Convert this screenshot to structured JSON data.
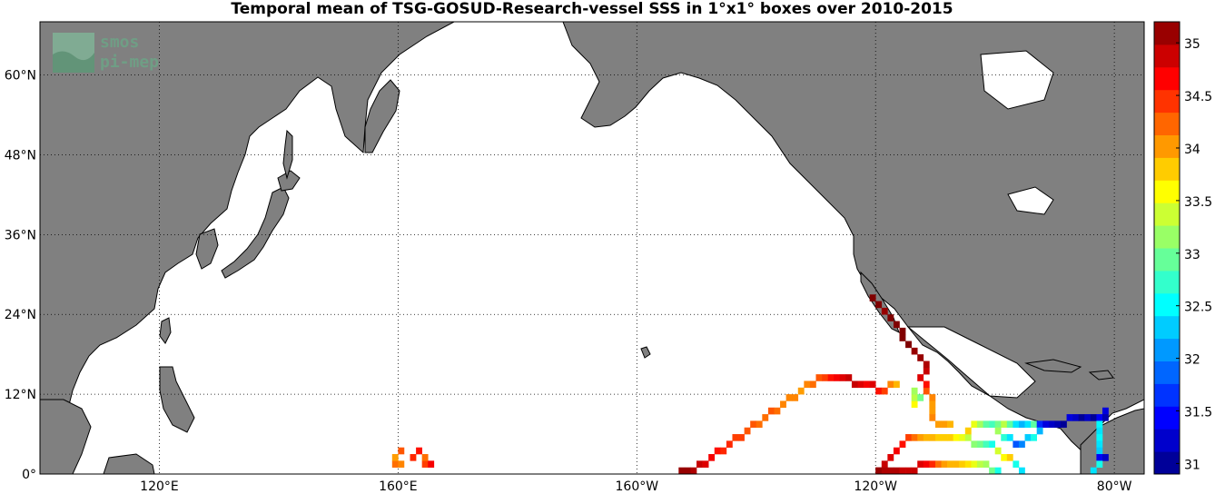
{
  "title": "Temporal mean of TSG-GOSUD-Research-vessel SSS in 1°x1° boxes over 2010-2015",
  "logo": {
    "line1": "smos",
    "line2": "pi-mep"
  },
  "map": {
    "projection": "equirectangular",
    "lon_range": [
      100,
      285
    ],
    "lat_range": [
      0,
      68
    ],
    "land_color": "#808080",
    "ocean_color": "#ffffff",
    "grid": "dotted",
    "lat_ticks": [
      {
        "value": 0,
        "label": "0°"
      },
      {
        "value": 12,
        "label": "12°N"
      },
      {
        "value": 24,
        "label": "24°N"
      },
      {
        "value": 36,
        "label": "36°N"
      },
      {
        "value": 48,
        "label": "48°N"
      },
      {
        "value": 60,
        "label": "60°N"
      }
    ],
    "lon_ticks": [
      {
        "value": 120,
        "label": "120°E"
      },
      {
        "value": 160,
        "label": "160°E"
      },
      {
        "value": 200,
        "label": "160°W"
      },
      {
        "value": 240,
        "label": "120°W"
      },
      {
        "value": 280,
        "label": "80°W"
      }
    ]
  },
  "colorbar": {
    "min": 30.9,
    "max": 35.2,
    "ticks": [
      {
        "value": 31,
        "label": "31"
      },
      {
        "value": 31.5,
        "label": "31.5"
      },
      {
        "value": 32,
        "label": "32"
      },
      {
        "value": 32.5,
        "label": "32.5"
      },
      {
        "value": 33,
        "label": "33"
      },
      {
        "value": 33.5,
        "label": "33.5"
      },
      {
        "value": 34,
        "label": "34"
      },
      {
        "value": 34.5,
        "label": "34.5"
      },
      {
        "value": 35,
        "label": "35"
      }
    ]
  },
  "chart_data": {
    "type": "heatmap",
    "title": "Temporal mean of TSG-GOSUD-Research-vessel SSS in 1°x1° boxes over 2010-2015",
    "units": "",
    "cells": [
      [
        159,
        1,
        34.2
      ],
      [
        159,
        2,
        34.0
      ],
      [
        160,
        1,
        34.1
      ],
      [
        160,
        3,
        34.3
      ],
      [
        162,
        2,
        34.5
      ],
      [
        163,
        3,
        34.6
      ],
      [
        164,
        1,
        34.4
      ],
      [
        164,
        2,
        34.2
      ],
      [
        165,
        1,
        34.7
      ],
      [
        207,
        0,
        35.1
      ],
      [
        208,
        0,
        35.1
      ],
      [
        209,
        0,
        35.0
      ],
      [
        210,
        1,
        34.9
      ],
      [
        211,
        1,
        34.8
      ],
      [
        212,
        2,
        34.7
      ],
      [
        213,
        3,
        34.6
      ],
      [
        214,
        3,
        34.5
      ],
      [
        215,
        4,
        34.5
      ],
      [
        216,
        5,
        34.4
      ],
      [
        217,
        5,
        34.4
      ],
      [
        218,
        6,
        34.3
      ],
      [
        219,
        7,
        34.3
      ],
      [
        220,
        7,
        34.2
      ],
      [
        221,
        8,
        34.2
      ],
      [
        222,
        9,
        34.3
      ],
      [
        223,
        9,
        34.2
      ],
      [
        224,
        10,
        34.1
      ],
      [
        225,
        11,
        34.1
      ],
      [
        226,
        11,
        34.1
      ],
      [
        227,
        12,
        34.0
      ],
      [
        228,
        13,
        34.1
      ],
      [
        229,
        13,
        34.2
      ],
      [
        230,
        14,
        34.3
      ],
      [
        231,
        14,
        34.4
      ],
      [
        232,
        14,
        34.6
      ],
      [
        233,
        14,
        34.7
      ],
      [
        234,
        14,
        34.8
      ],
      [
        235,
        14,
        34.9
      ],
      [
        236,
        13,
        34.9
      ],
      [
        237,
        13,
        34.8
      ],
      [
        238,
        13,
        34.7
      ],
      [
        239,
        13,
        34.8
      ],
      [
        240,
        12,
        34.6
      ],
      [
        241,
        12,
        34.4
      ],
      [
        242,
        13,
        34.1
      ],
      [
        243,
        13,
        33.9
      ],
      [
        246,
        10,
        33.6
      ],
      [
        246,
        11,
        33.3
      ],
      [
        247,
        11,
        33.0
      ],
      [
        246,
        12,
        33.2
      ],
      [
        248,
        12,
        34.3
      ],
      [
        248,
        13,
        34.6
      ],
      [
        247,
        14,
        34.8
      ],
      [
        248,
        15,
        34.9
      ],
      [
        248,
        16,
        35.0
      ],
      [
        247,
        17,
        35.1
      ],
      [
        246,
        18,
        35.1
      ],
      [
        245,
        19,
        35.2
      ],
      [
        244,
        20,
        35.2
      ],
      [
        244,
        21,
        35.2
      ],
      [
        243,
        22,
        35.2
      ],
      [
        242,
        23,
        35.2
      ],
      [
        241,
        24,
        35.1
      ],
      [
        240,
        25,
        35.2
      ],
      [
        239,
        26,
        35.2
      ],
      [
        249,
        11,
        34.1
      ],
      [
        249,
        10,
        34.0
      ],
      [
        249,
        9,
        34.0
      ],
      [
        249,
        8,
        34.1
      ],
      [
        250,
        7,
        34.0
      ],
      [
        251,
        7,
        34.0
      ],
      [
        252,
        7,
        33.9
      ],
      [
        240,
        0,
        35.1
      ],
      [
        241,
        1,
        34.9
      ],
      [
        242,
        2,
        34.8
      ],
      [
        243,
        3,
        34.7
      ],
      [
        244,
        4,
        34.6
      ],
      [
        245,
        5,
        34.4
      ],
      [
        246,
        5,
        34.2
      ],
      [
        247,
        5,
        34.0
      ],
      [
        248,
        5,
        33.9
      ],
      [
        249,
        5,
        33.9
      ],
      [
        250,
        5,
        33.8
      ],
      [
        251,
        5,
        33.8
      ],
      [
        252,
        5,
        33.8
      ],
      [
        253,
        5,
        33.6
      ],
      [
        254,
        5,
        33.5
      ],
      [
        255,
        5,
        33.3
      ],
      [
        256,
        4,
        33.1
      ],
      [
        257,
        4,
        33.0
      ],
      [
        258,
        4,
        32.8
      ],
      [
        259,
        4,
        32.6
      ],
      [
        260,
        3,
        33.4
      ],
      [
        261,
        2,
        33.6
      ],
      [
        262,
        2,
        33.8
      ],
      [
        263,
        1,
        32.6
      ],
      [
        264,
        0,
        32.4
      ],
      [
        255,
        6,
        33.8
      ],
      [
        256,
        7,
        33.5
      ],
      [
        257,
        7,
        33.2
      ],
      [
        258,
        7,
        32.9
      ],
      [
        259,
        7,
        32.8
      ],
      [
        260,
        7,
        33.0
      ],
      [
        261,
        7,
        33.3
      ],
      [
        262,
        7,
        32.9
      ],
      [
        263,
        7,
        32.4
      ],
      [
        264,
        7,
        32.2
      ],
      [
        265,
        7,
        32.4
      ],
      [
        266,
        7,
        32.9
      ],
      [
        267,
        7,
        31.6
      ],
      [
        268,
        7,
        31.3
      ],
      [
        269,
        7,
        31.2
      ],
      [
        270,
        7,
        31.1
      ],
      [
        271,
        7,
        31.0
      ],
      [
        272,
        8,
        31.3
      ],
      [
        273,
        8,
        31.2
      ],
      [
        274,
        8,
        31.0
      ],
      [
        275,
        8,
        31.2
      ],
      [
        276,
        8,
        31.0
      ],
      [
        277,
        8,
        31.4
      ],
      [
        278,
        9,
        31.3
      ],
      [
        278,
        8,
        31.1
      ],
      [
        260,
        6,
        33.2
      ],
      [
        261,
        5,
        32.7
      ],
      [
        262,
        5,
        32.4
      ],
      [
        263,
        4,
        31.8
      ],
      [
        264,
        4,
        32.0
      ],
      [
        265,
        5,
        32.3
      ],
      [
        266,
        5,
        32.6
      ],
      [
        267,
        6,
        32.2
      ],
      [
        277,
        7,
        32.5
      ],
      [
        277,
        6,
        32.4
      ],
      [
        277,
        5,
        32.5
      ],
      [
        277,
        4,
        32.4
      ],
      [
        277,
        3,
        32.3
      ],
      [
        277,
        2,
        31.4
      ],
      [
        278,
        2,
        31.2
      ],
      [
        277,
        1,
        32.6
      ],
      [
        276,
        0,
        32.4
      ],
      [
        240,
        0,
        35.1
      ],
      [
        241,
        0,
        35.0
      ],
      [
        242,
        0,
        35.0
      ],
      [
        243,
        0,
        35.0
      ],
      [
        244,
        0,
        34.9
      ],
      [
        245,
        0,
        34.9
      ],
      [
        246,
        0,
        34.9
      ],
      [
        247,
        1,
        34.8
      ],
      [
        248,
        1,
        34.7
      ],
      [
        249,
        1,
        34.5
      ],
      [
        250,
        1,
        34.2
      ],
      [
        251,
        1,
        34.0
      ],
      [
        252,
        1,
        33.9
      ],
      [
        253,
        1,
        33.9
      ],
      [
        254,
        1,
        33.8
      ],
      [
        255,
        1,
        33.7
      ],
      [
        256,
        1,
        33.5
      ],
      [
        257,
        1,
        33.3
      ],
      [
        258,
        1,
        33.2
      ],
      [
        259,
        0,
        33.0
      ],
      [
        260,
        0,
        32.6
      ]
    ]
  }
}
